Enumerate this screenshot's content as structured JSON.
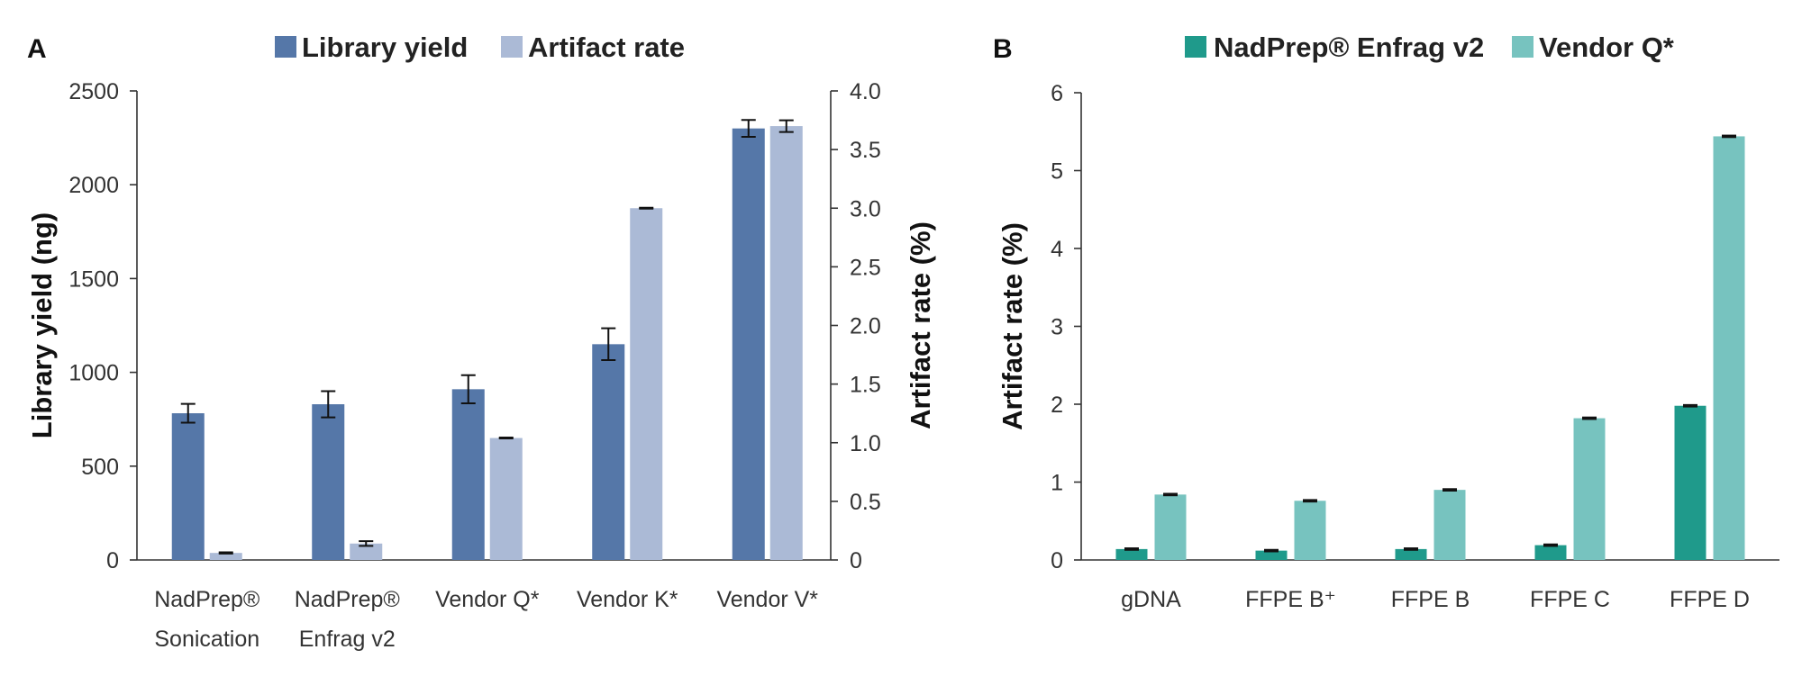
{
  "chart_data": [
    {
      "panel": "A",
      "type": "bar",
      "categories": [
        [
          "NadPrep®",
          "Sonication"
        ],
        [
          "NadPrep®",
          "Enfrag v2"
        ],
        [
          "Vendor Q*"
        ],
        [
          "Vendor K*"
        ],
        [
          "Vendor V*"
        ]
      ],
      "series": [
        {
          "name": "Library yield",
          "axis": "left",
          "color": "#5577a8",
          "values": [
            782,
            830,
            910,
            1150,
            2300
          ],
          "errors": [
            50,
            70,
            75,
            85,
            45
          ]
        },
        {
          "name": "Artifact rate",
          "axis": "right",
          "color": "#abbad6",
          "values": [
            0.06,
            0.14,
            1.04,
            3.0,
            3.7
          ],
          "errors": [
            0.005,
            0.02,
            0.004,
            0.004,
            0.05
          ]
        }
      ],
      "ylabel_left": "Library yield (ng)",
      "ylabel_right": "Artifact rate (%)",
      "ylim_left": [
        0,
        2500
      ],
      "yticks_left": [
        "0",
        "500",
        "1000",
        "1500",
        "2000",
        "2500"
      ],
      "yticks_left_values": [
        0,
        500,
        1000,
        1500,
        2000,
        2500
      ],
      "ylim_right": [
        0,
        4.0
      ],
      "yticks_right": [
        "0",
        "0.5",
        "1.0",
        "1.5",
        "2.0",
        "2.5",
        "3.0",
        "3.5",
        "4.0"
      ],
      "yticks_right_values": [
        0,
        0.5,
        1.0,
        1.5,
        2.0,
        2.5,
        3.0,
        3.5,
        4.0
      ],
      "legend_position": "top-center",
      "grid": false
    },
    {
      "panel": "B",
      "type": "bar",
      "categories": [
        [
          "gDNA"
        ],
        [
          "FFPE B⁺"
        ],
        [
          "FFPE B"
        ],
        [
          "FFPE C"
        ],
        [
          "FFPE D"
        ]
      ],
      "series": [
        {
          "name": "NadPrep® Enfrag v2",
          "axis": "left",
          "color": "#1f9a8b",
          "values": [
            0.14,
            0.12,
            0.14,
            0.19,
            1.98
          ],
          "errors": [
            0.01,
            0.01,
            0.01,
            0.01,
            0.01
          ]
        },
        {
          "name": "Vendor Q*",
          "axis": "left",
          "color": "#77c3bf",
          "values": [
            0.84,
            0.76,
            0.9,
            1.82,
            5.44
          ],
          "errors": [
            0.01,
            0.01,
            0.01,
            0.01,
            0.01
          ]
        }
      ],
      "ylabel_left": "Artifact rate (%)",
      "ylim_left": [
        0,
        6
      ],
      "yticks_left": [
        "0",
        "1",
        "2",
        "3",
        "4",
        "5",
        "6"
      ],
      "yticks_left_values": [
        0,
        1,
        2,
        3,
        4,
        5,
        6
      ],
      "legend_position": "top-center",
      "grid": false
    }
  ]
}
